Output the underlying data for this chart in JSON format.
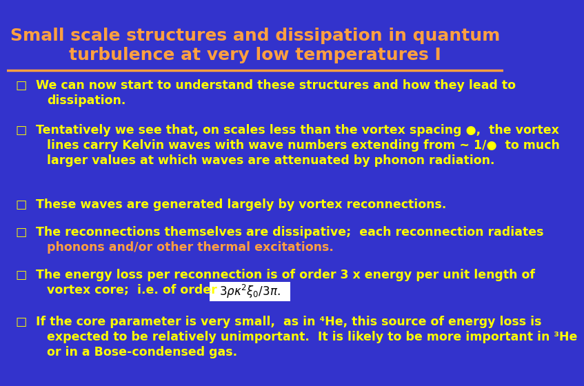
{
  "title_line1": "Small scale structures and dissipation in quantum",
  "title_line2": "turbulence at very low temperatures I",
  "title_color": "#FFA040",
  "title_bg_color": "#3333CC",
  "separator_color": "#FFA040",
  "body_bg_color": "#3333CC",
  "bullet_color": "#FFFF00",
  "bullet_highlight_color": "#FFA040",
  "bullet1_line1": "We can now start to understand these structures and how they lead to",
  "bullet1_line2": "dissipation.",
  "bullet2_line1": "Tentatively we see that, on scales less than the vortex spacing ●,  the vortex",
  "bullet2_line2": "lines carry Kelvin waves with wave numbers extending from ~ 1/●  to much",
  "bullet2_line3": "larger values at which waves are attenuated by phonon radiation.",
  "bullet3": "These waves are generated largely by vortex reconnections.",
  "bullet4_line1": "The reconnections themselves are dissipative;  each reconnection radiates",
  "bullet4_line2": "phonons and/or other thermal excitations.",
  "bullet5_line1": "The energy loss per reconnection is of order 3 x energy per unit length of",
  "bullet5_line2": "vortex core;  i.e. of order",
  "bullet6_line1": "If the core parameter is very small,  as in ⁴He, this source of energy loss is",
  "bullet6_line2": "expected to be relatively unimportant.  It is likely to be more important in ³He",
  "bullet6_line3": "or in a Bose-condensed gas.",
  "font_size_title": 18,
  "font_size_body": 12.5
}
